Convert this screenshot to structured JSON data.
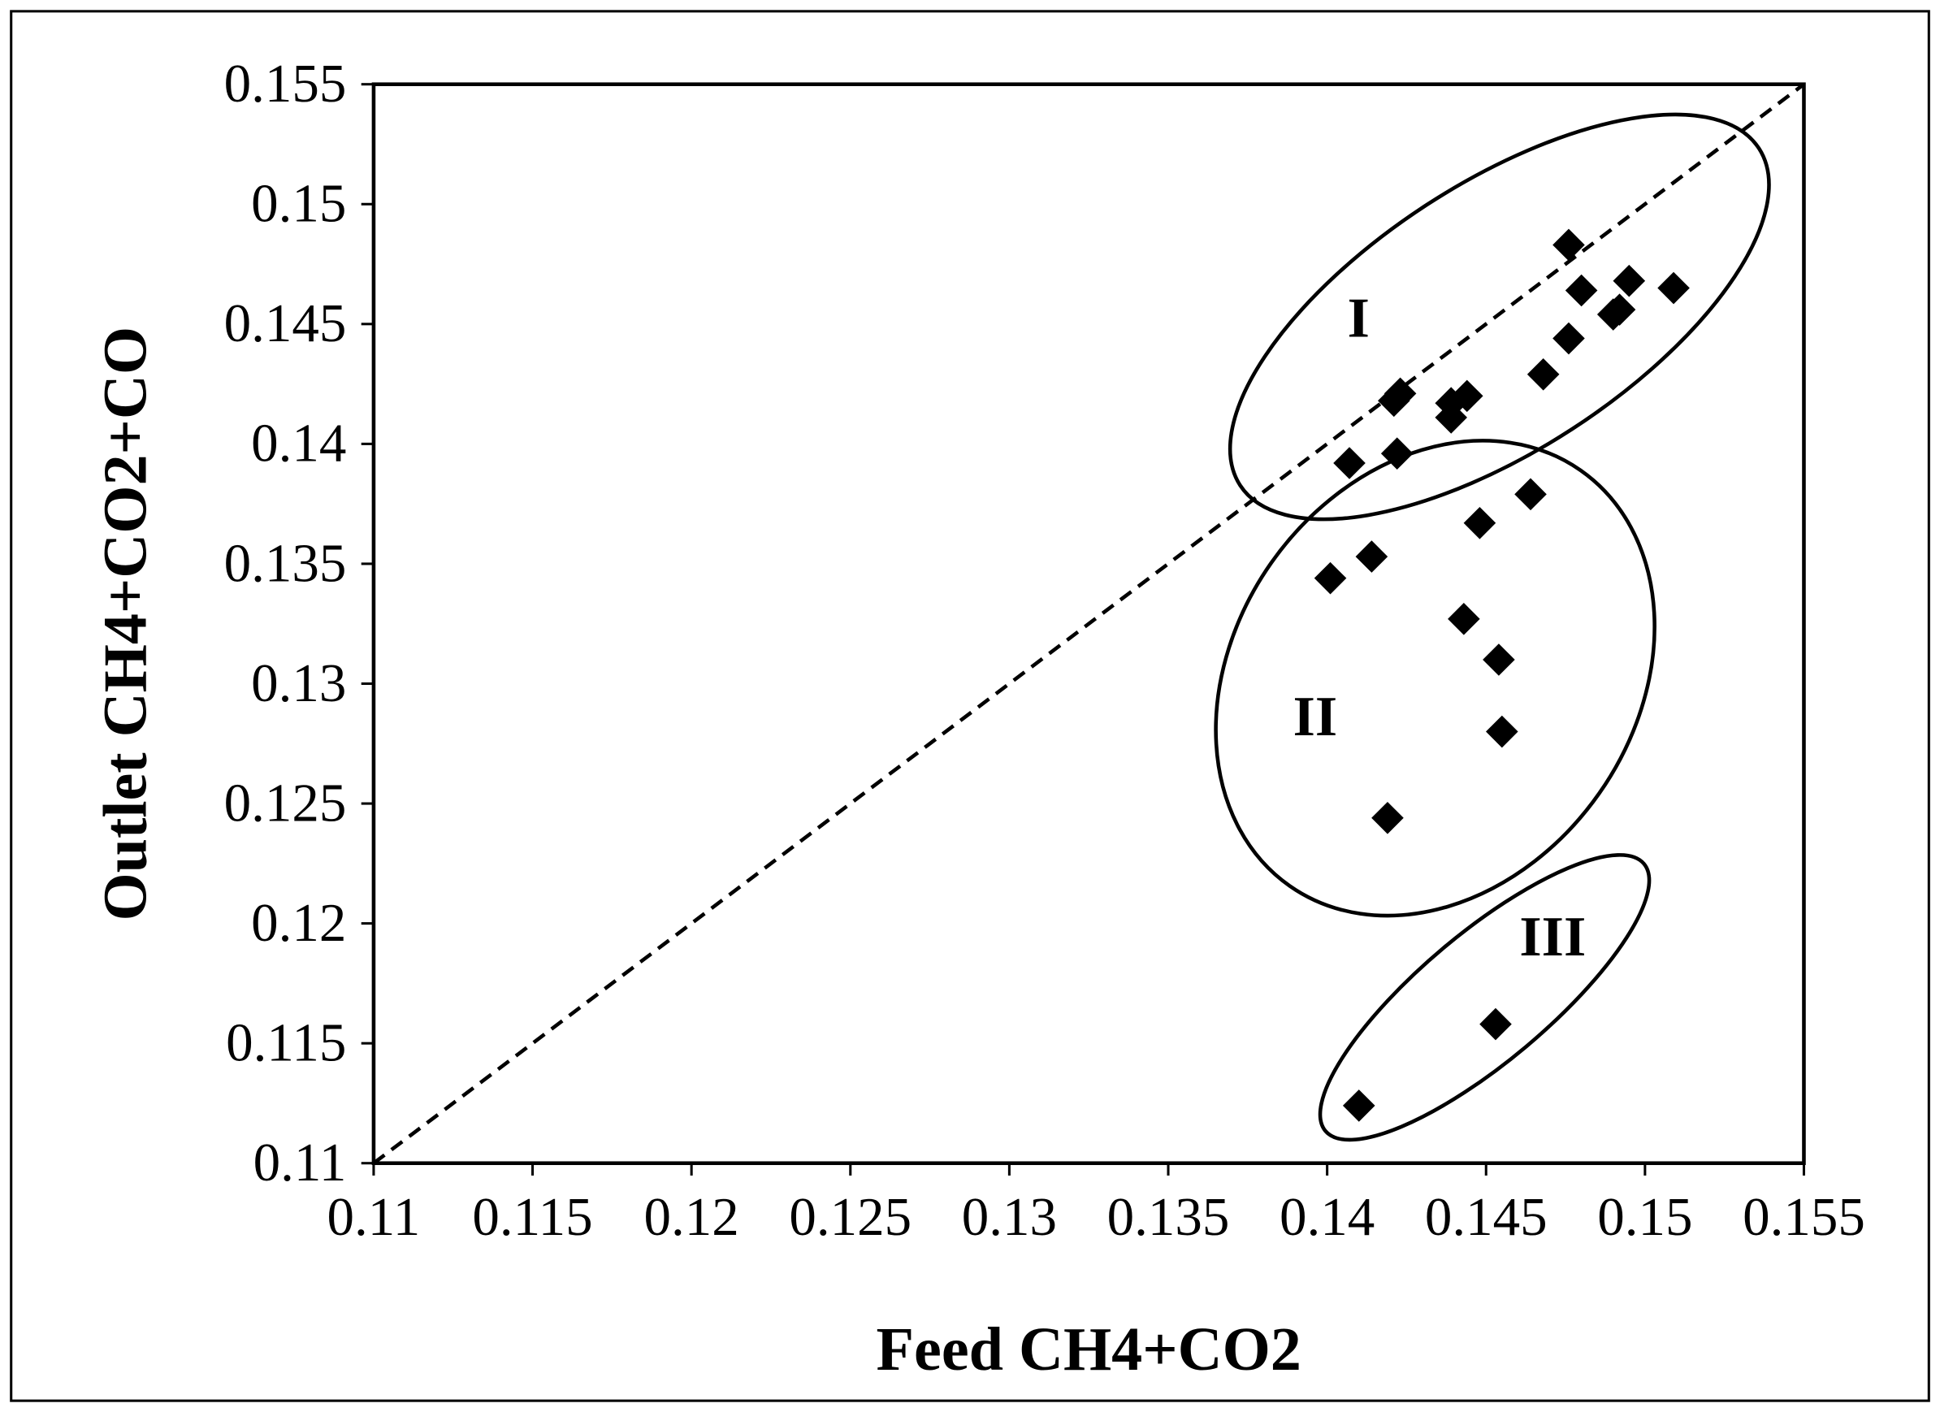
{
  "chart_data": {
    "type": "scatter",
    "title": "",
    "xlabel": "Feed CH4+CO2",
    "ylabel": "Outlet CH4+CO2+CO",
    "xlim": [
      0.11,
      0.155
    ],
    "ylim": [
      0.11,
      0.155
    ],
    "xticks": [
      "0.11",
      "0.115",
      "0.12",
      "0.125",
      "0.13",
      "0.135",
      "0.14",
      "0.145",
      "0.15",
      "0.155"
    ],
    "yticks": [
      "0.11",
      "0.115",
      "0.12",
      "0.125",
      "0.13",
      "0.135",
      "0.14",
      "0.145",
      "0.15",
      "0.155"
    ],
    "grid": false,
    "legend": "none",
    "marker": "diamond",
    "marker_color": "#000000",
    "reference_line": {
      "style": "dashed",
      "from": [
        0.11,
        0.11
      ],
      "to": [
        0.155,
        0.155
      ]
    },
    "groups": [
      {
        "label": "I",
        "points": [
          [
            0.1476,
            0.1483
          ],
          [
            0.148,
            0.1464
          ],
          [
            0.1495,
            0.1468
          ],
          [
            0.1509,
            0.1465
          ],
          [
            0.149,
            0.1454
          ],
          [
            0.1492,
            0.1456
          ],
          [
            0.1476,
            0.1444
          ],
          [
            0.1468,
            0.1429
          ],
          [
            0.1421,
            0.1418
          ],
          [
            0.1423,
            0.1421
          ],
          [
            0.1444,
            0.142
          ],
          [
            0.1439,
            0.1417
          ],
          [
            0.1439,
            0.1411
          ],
          [
            0.1422,
            0.1396
          ],
          [
            0.1407,
            0.1392
          ]
        ]
      },
      {
        "label": "II",
        "points": [
          [
            0.1464,
            0.1379
          ],
          [
            0.1448,
            0.1367
          ],
          [
            0.1414,
            0.1353
          ],
          [
            0.1401,
            0.1344
          ],
          [
            0.1443,
            0.1327
          ],
          [
            0.1454,
            0.131
          ],
          [
            0.1455,
            0.128
          ],
          [
            0.1419,
            0.1244
          ]
        ]
      },
      {
        "label": "III",
        "points": [
          [
            0.1453,
            0.1158
          ],
          [
            0.141,
            0.1124
          ]
        ]
      }
    ]
  }
}
